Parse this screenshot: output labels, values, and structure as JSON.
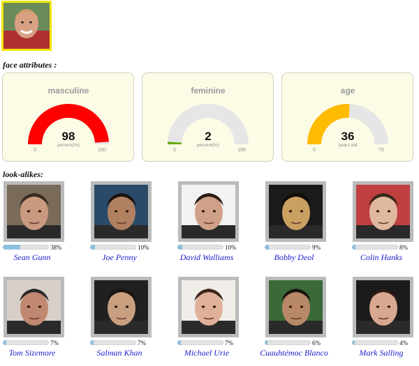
{
  "labels": {
    "face_attributes": "face attributes :",
    "look_alikes": "look-alikes:"
  },
  "gauges": [
    {
      "title": "masculine",
      "value": "98",
      "unit": "percent(%)",
      "min": "0",
      "max": "100",
      "fraction": 0.98,
      "color": "#ff0000"
    },
    {
      "title": "feminine",
      "value": "2",
      "unit": "percent(%)",
      "min": "0",
      "max": "100",
      "fraction": 0.02,
      "color": "#66aa00"
    },
    {
      "title": "age",
      "value": "36",
      "unit": "years old",
      "min": "0",
      "max": "70",
      "fraction": 0.514,
      "color": "#ffbb00"
    }
  ],
  "lookalikes": [
    {
      "name": "Sean Gunn",
      "percent": "38%",
      "fraction": 0.38,
      "skin": "#c99a80",
      "bg": "#7a6a5a",
      "hair": "#3a2a1e"
    },
    {
      "name": "Joe Penny",
      "percent": "10%",
      "fraction": 0.1,
      "skin": "#b08060",
      "bg": "#2a4a6a",
      "hair": "#1a120c"
    },
    {
      "name": "David Walliams",
      "percent": "10%",
      "fraction": 0.1,
      "skin": "#d0a088",
      "bg": "#f2f2f2",
      "hair": "#2a1c14"
    },
    {
      "name": "Bobby Deol",
      "percent": "9%",
      "fraction": 0.09,
      "skin": "#c8a060",
      "bg": "#1a1a1a",
      "hair": "#100c08"
    },
    {
      "name": "Colin Hanks",
      "percent": "8%",
      "fraction": 0.08,
      "skin": "#e0b8a0",
      "bg": "#c04040",
      "hair": "#3a2818"
    },
    {
      "name": "Tom Sizemore",
      "percent": "7%",
      "fraction": 0.07,
      "skin": "#c08870",
      "bg": "#d8d0c8",
      "hair": "#2a2a2a"
    },
    {
      "name": "Salman Khan",
      "percent": "7%",
      "fraction": 0.07,
      "skin": "#c8a080",
      "bg": "#202020",
      "hair": "#1a1410"
    },
    {
      "name": "Michael Urie",
      "percent": "7%",
      "fraction": 0.07,
      "skin": "#e0b09a",
      "bg": "#f0ede8",
      "hair": "#3a2418"
    },
    {
      "name": "Cuauhtémoc Blanco",
      "percent": "6%",
      "fraction": 0.06,
      "skin": "#b88868",
      "bg": "#3a6a3a",
      "hair": "#1a120c"
    },
    {
      "name": "Mark Salling",
      "percent": "4%",
      "fraction": 0.04,
      "skin": "#d8a890",
      "bg": "#1a1a1a",
      "hair": "#2a1c14"
    }
  ],
  "icons": {
    "subject_photo": "user-photo"
  },
  "colors": {
    "photo_border": "#f2e600",
    "link": "#1a1acc",
    "card_bg": "#fcfce6",
    "bar_fill": "#8fbfdf"
  }
}
